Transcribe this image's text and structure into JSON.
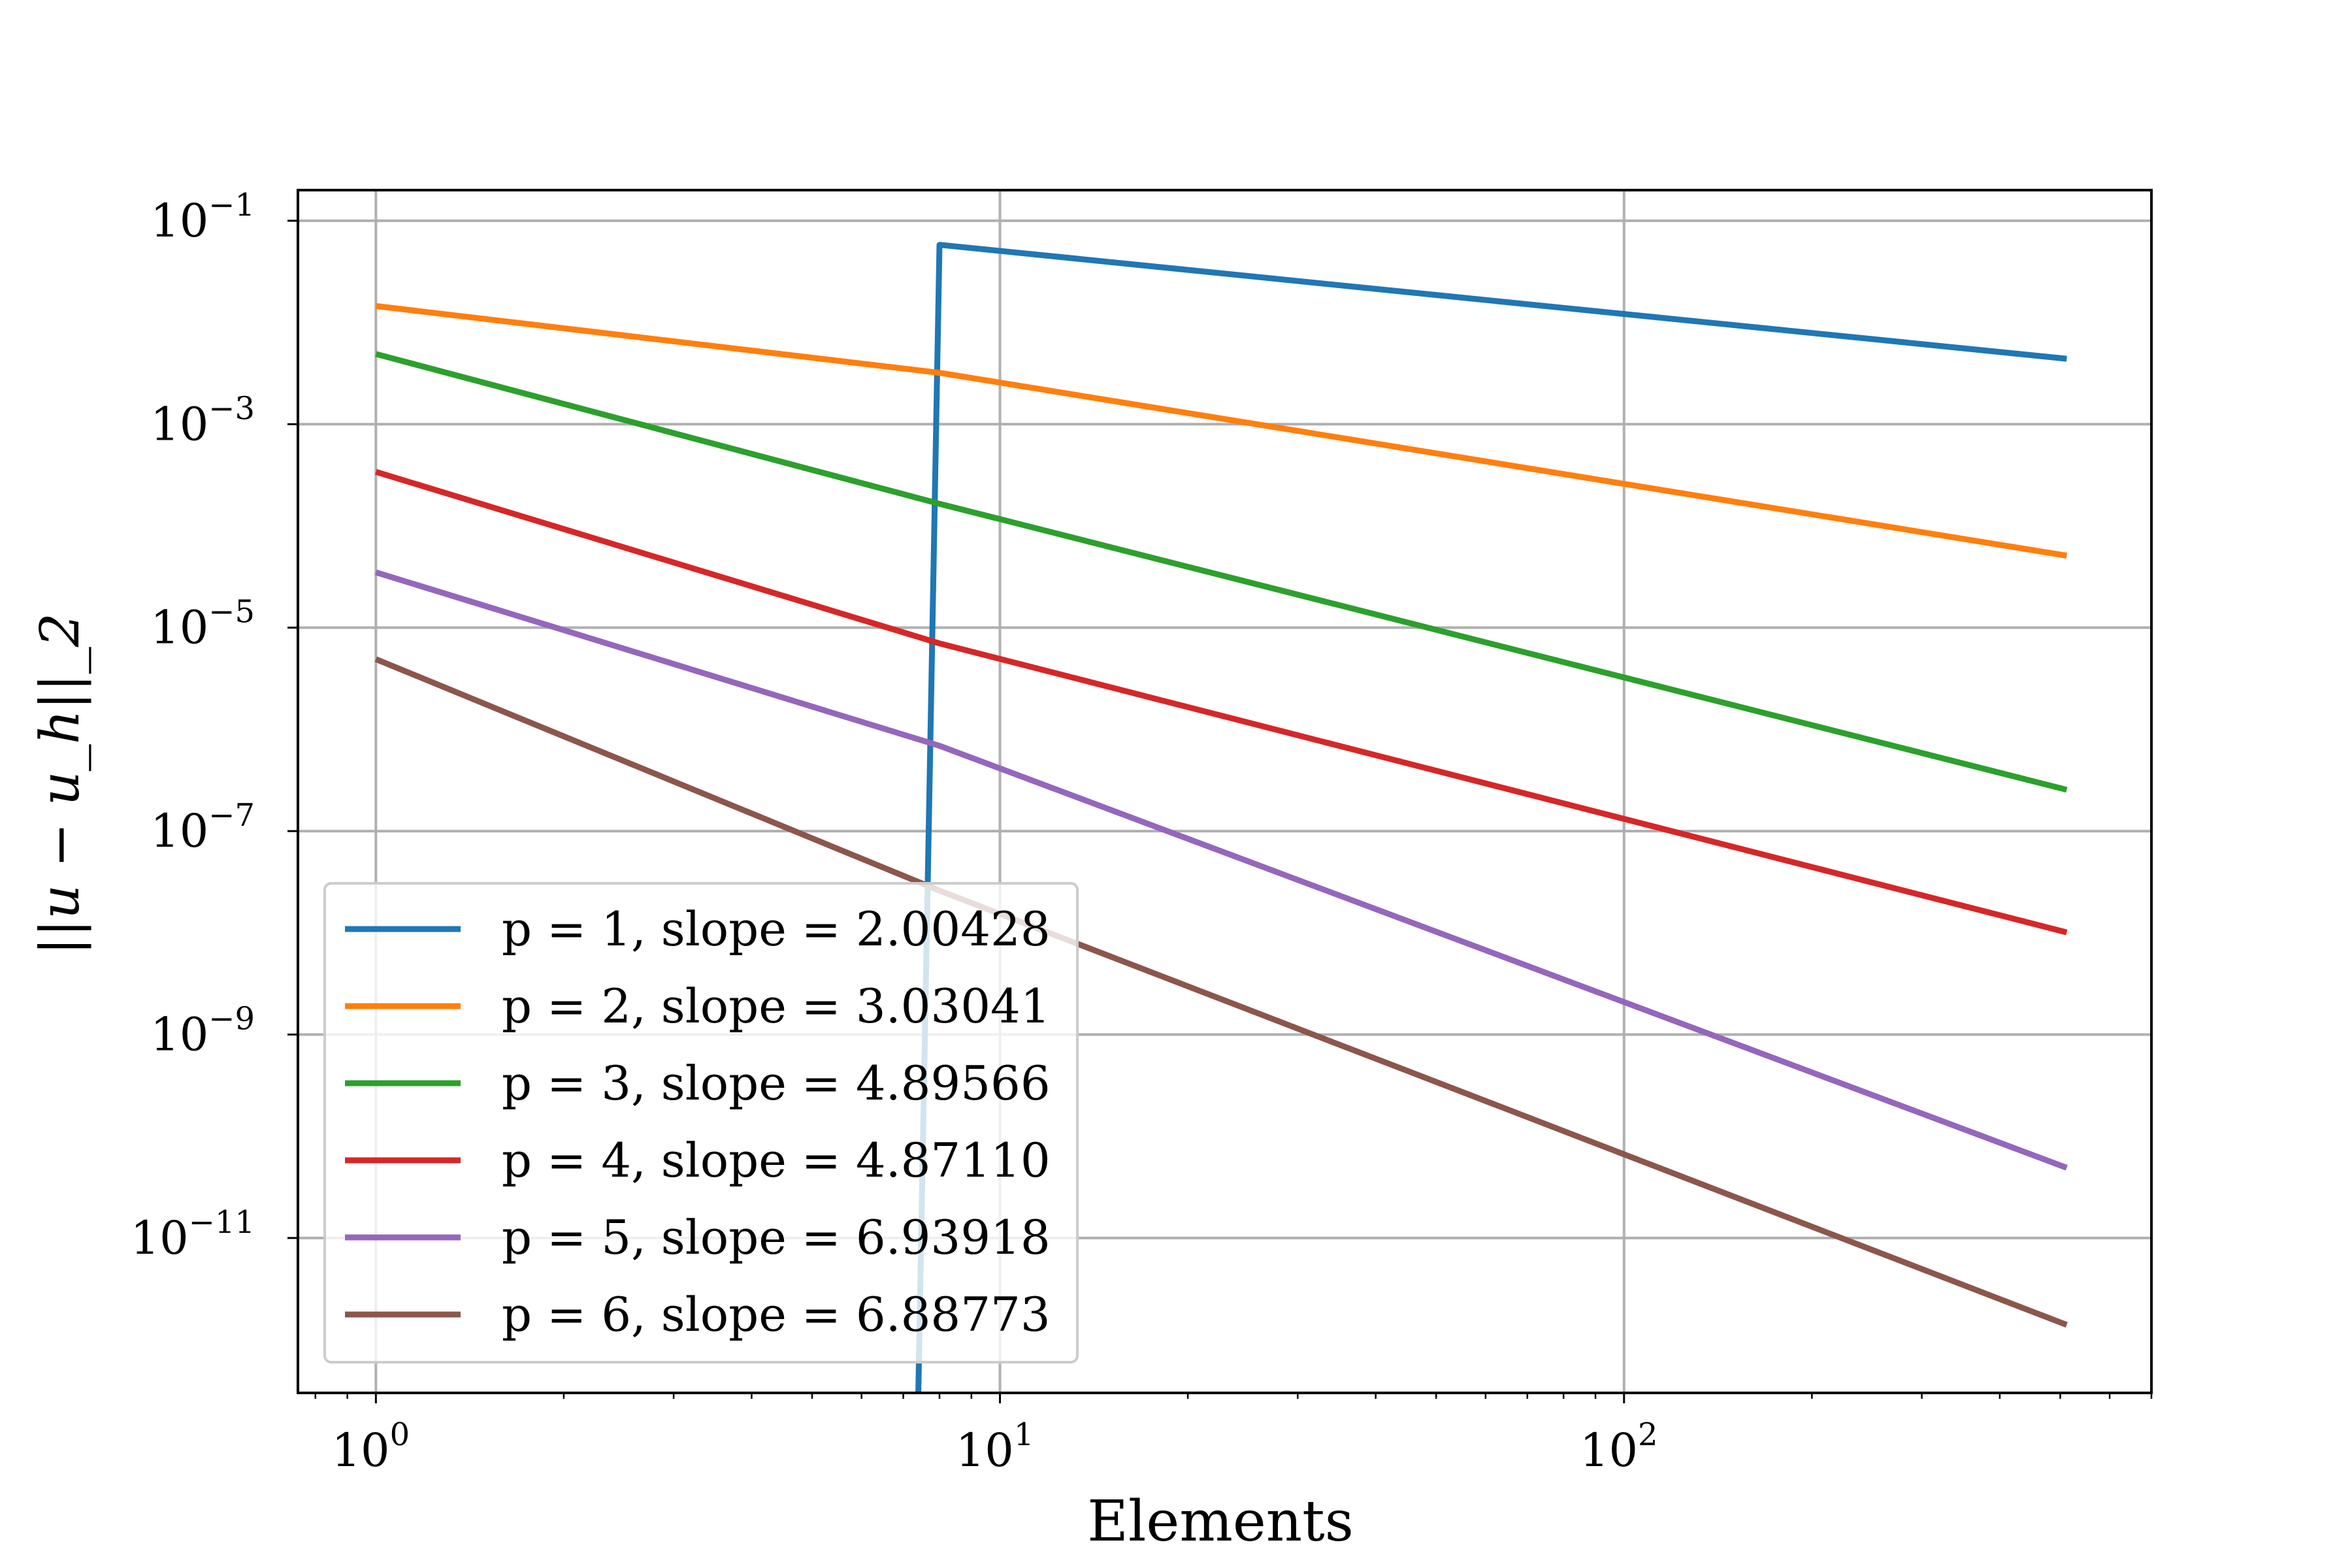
{
  "chart_data": {
    "type": "line",
    "title": "",
    "xlabel": "Elements",
    "ylabel": "||u − u_h||_2",
    "x_scale": "log",
    "y_scale": "log",
    "xlim": [
      0.75,
      700
    ],
    "ylim": [
      3e-13,
      0.2
    ],
    "grid": true,
    "legend_position": "lower-left",
    "x_ticks": [
      {
        "value": 1,
        "base": "10",
        "exp": "0"
      },
      {
        "value": 10,
        "base": "10",
        "exp": "1"
      },
      {
        "value": 100,
        "base": "10",
        "exp": "2"
      }
    ],
    "y_ticks": [
      {
        "value": 0.1,
        "base": "10",
        "exp": "−1"
      },
      {
        "value": 0.001,
        "base": "10",
        "exp": "−3"
      },
      {
        "value": 1e-05,
        "base": "10",
        "exp": "−5"
      },
      {
        "value": 1e-07,
        "base": "10",
        "exp": "−7"
      },
      {
        "value": 1e-09,
        "base": "10",
        "exp": "−9"
      },
      {
        "value": 1e-11,
        "base": "10",
        "exp": "−11"
      }
    ],
    "series": [
      {
        "name": "p = 1, slope = 2.00428",
        "color": "#1f77b4",
        "x": [
          7.4,
          8,
          512
        ],
        "y": [
          3e-13,
          0.058,
          0.0044
        ]
      },
      {
        "name": "p = 2, slope = 3.03041",
        "color": "#ff7f0e",
        "x": [
          1,
          8,
          512
        ],
        "y": [
          0.0145,
          0.0032,
          5.1e-05
        ]
      },
      {
        "name": "p = 3, slope = 4.89566",
        "color": "#2ca02c",
        "x": [
          1,
          8,
          512
        ],
        "y": [
          0.0049,
          0.000165,
          2.55e-07
        ]
      },
      {
        "name": "p = 4, slope = 4.87110",
        "color": "#d62728",
        "x": [
          1,
          8,
          512
        ],
        "y": [
          0.00034,
          7e-06,
          1.01e-08
        ]
      },
      {
        "name": "p = 5, slope = 6.93918",
        "color": "#9467bd",
        "x": [
          1,
          8,
          512
        ],
        "y": [
          3.5e-05,
          6.9e-07,
          4.9e-11
        ]
      },
      {
        "name": "p = 6, slope = 6.88773",
        "color": "#8c564b",
        "x": [
          1,
          8,
          512
        ],
        "y": [
          4.9e-06,
          2.6e-08,
          1.4e-12
        ]
      }
    ]
  }
}
